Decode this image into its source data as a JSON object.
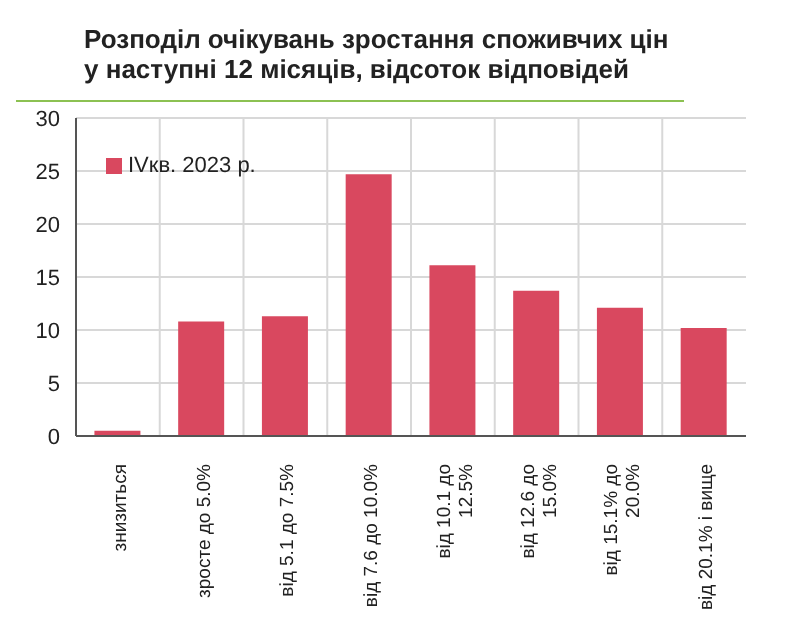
{
  "chart_data": {
    "type": "bar",
    "title": "Розподіл очікувань зростання споживчих цін у наступні 12 місяців, відсоток відповідей",
    "categories": [
      "знизиться",
      "зросте до 5.0%",
      "від 5.1 до 7.5%",
      "від 7.6 до 10.0%",
      "від 10.1 до 12.5%",
      "від 12.6 до 15.0%",
      "від 15.1% до 20.0%",
      "від 20.1% і вище"
    ],
    "series": [
      {
        "name": "IVкв. 2023 р.",
        "color": "#d9485f",
        "values": [
          0.5,
          10.8,
          11.3,
          24.7,
          16.1,
          13.7,
          12.1,
          10.2
        ]
      }
    ],
    "ylim": [
      0,
      30
    ],
    "yticks": [
      0,
      5,
      10,
      15,
      20,
      25,
      30
    ],
    "grid": true,
    "legend": "top left"
  }
}
